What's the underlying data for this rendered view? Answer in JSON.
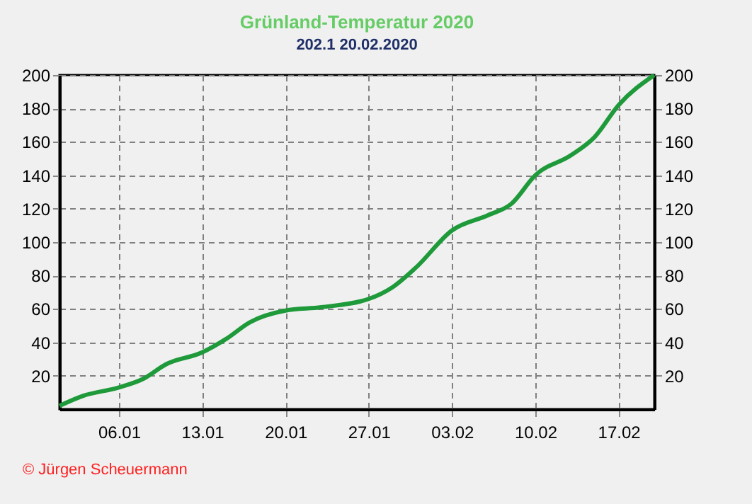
{
  "chart_data": {
    "type": "line",
    "title": "Grünland-Temperatur  2020",
    "subtitle": "202.1  20.02.2020",
    "x": [
      "2020-01-01",
      "2020-01-03",
      "2020-01-06",
      "2020-01-08",
      "2020-01-10",
      "2020-01-13",
      "2020-01-15",
      "2020-01-17",
      "2020-01-20",
      "2020-01-23",
      "2020-01-27",
      "2020-01-29",
      "2020-01-31",
      "2020-02-03",
      "2020-02-06",
      "2020-02-08",
      "2020-02-10",
      "2020-02-13",
      "2020-02-15",
      "2020-02-17",
      "2020-02-20"
    ],
    "series": [
      {
        "color": "#1f9a3a",
        "values": [
          2,
          8,
          13,
          18,
          27,
          34,
          42,
          52,
          59,
          61,
          66,
          73,
          85,
          107,
          116,
          123,
          140,
          152,
          163,
          182,
          200
        ]
      }
    ],
    "xlim": [
      "2020-01-01",
      "2020-02-20"
    ],
    "xticks": [
      {
        "value": "2020-01-06",
        "label": "06.01"
      },
      {
        "value": "2020-01-13",
        "label": "13.01"
      },
      {
        "value": "2020-01-20",
        "label": "20.01"
      },
      {
        "value": "2020-01-27",
        "label": "27.01"
      },
      {
        "value": "2020-02-03",
        "label": "03.02"
      },
      {
        "value": "2020-02-10",
        "label": "10.02"
      },
      {
        "value": "2020-02-17",
        "label": "17.02"
      }
    ],
    "ylim": [
      0,
      200
    ],
    "yticks": [
      20,
      40,
      60,
      80,
      100,
      120,
      140,
      160,
      180,
      200
    ],
    "y2lim": [
      0,
      200
    ],
    "y2ticks": [
      20,
      40,
      60,
      80,
      100,
      120,
      140,
      160,
      180,
      200
    ],
    "grid": true,
    "marker": "none",
    "line_style": "solid",
    "annotations": [
      "© Jürgen Scheuermann"
    ]
  }
}
